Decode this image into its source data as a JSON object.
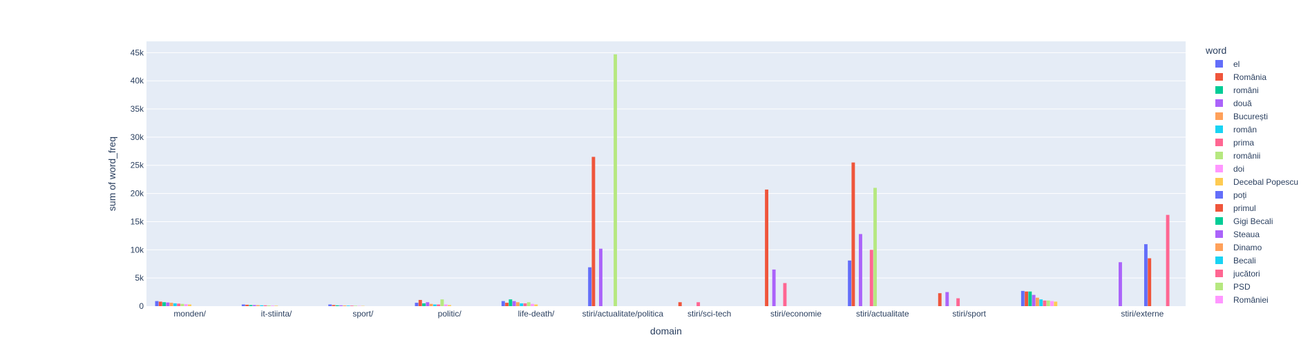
{
  "chart_data": {
    "type": "bar",
    "barmode": "group",
    "xlabel": "domain",
    "ylabel": "sum of word_freq",
    "ylim": [
      0,
      47000
    ],
    "yticks": [
      0,
      5000,
      10000,
      15000,
      20000,
      25000,
      30000,
      35000,
      40000,
      45000
    ],
    "yticklabels": [
      "0",
      "5k",
      "10k",
      "15k",
      "20k",
      "25k",
      "30k",
      "35k",
      "40k",
      "45k"
    ],
    "grid": true,
    "legend_title": "word",
    "legend_position": "right",
    "categories": [
      "monden/",
      "it-stiinta/",
      "sport/",
      "politic/",
      "life-death/",
      "stiri/actualitate/politica",
      "stiri/sci-tech",
      "stiri/economie",
      "stiri/actualitate",
      "stiri/sport",
      "",
      "stiri/externe"
    ],
    "series": [
      {
        "name": "el",
        "color": "#636efa",
        "values": [
          900,
          300,
          300,
          600,
          900,
          6900,
          0,
          0,
          8100,
          0,
          2700,
          0
        ]
      },
      {
        "name": "România",
        "color": "#EF553B",
        "values": [
          800,
          250,
          200,
          1100,
          600,
          26500,
          700,
          20700,
          25500,
          2300,
          2600,
          0
        ]
      },
      {
        "name": "români",
        "color": "#00cc96",
        "values": [
          700,
          200,
          150,
          500,
          1200,
          0,
          0,
          0,
          0,
          0,
          2600,
          0
        ]
      },
      {
        "name": "două",
        "color": "#ab63fa",
        "values": [
          650,
          200,
          150,
          700,
          900,
          10200,
          0,
          6500,
          12800,
          2500,
          2000,
          7800
        ]
      },
      {
        "name": "București",
        "color": "#FFA15A",
        "values": [
          600,
          180,
          120,
          400,
          700,
          0,
          0,
          0,
          0,
          0,
          1500,
          0
        ]
      },
      {
        "name": "român",
        "color": "#19d3f3",
        "values": [
          500,
          150,
          100,
          300,
          500,
          0,
          0,
          0,
          0,
          0,
          1200,
          0
        ]
      },
      {
        "name": "prima",
        "color": "#FF6692",
        "values": [
          450,
          150,
          100,
          300,
          500,
          0,
          700,
          4100,
          10000,
          1400,
          1000,
          0
        ]
      },
      {
        "name": "românii",
        "color": "#B6E880",
        "values": [
          400,
          120,
          80,
          1200,
          700,
          44700,
          0,
          0,
          21000,
          0,
          1000,
          0
        ]
      },
      {
        "name": "doi",
        "color": "#FF97FF",
        "values": [
          350,
          100,
          60,
          300,
          400,
          0,
          0,
          0,
          0,
          0,
          900,
          0
        ]
      },
      {
        "name": "Decebal Popescu",
        "color": "#FECB52",
        "values": [
          300,
          80,
          50,
          200,
          300,
          0,
          0,
          0,
          0,
          0,
          800,
          0
        ]
      },
      {
        "name": "poți",
        "color": "#636efa",
        "values": [
          0,
          0,
          0,
          0,
          0,
          0,
          0,
          0,
          0,
          0,
          0,
          11000
        ]
      },
      {
        "name": "primul",
        "color": "#EF553B",
        "values": [
          0,
          0,
          0,
          0,
          0,
          0,
          0,
          0,
          0,
          0,
          0,
          8500
        ]
      },
      {
        "name": "Gigi Becali",
        "color": "#00cc96",
        "values": [
          0,
          0,
          0,
          0,
          0,
          0,
          0,
          0,
          0,
          0,
          0,
          0
        ]
      },
      {
        "name": "Steaua",
        "color": "#ab63fa",
        "values": [
          0,
          0,
          0,
          0,
          0,
          0,
          0,
          0,
          0,
          0,
          0,
          0
        ]
      },
      {
        "name": "Dinamo",
        "color": "#FFA15A",
        "values": [
          0,
          0,
          0,
          0,
          0,
          0,
          0,
          0,
          0,
          0,
          0,
          0
        ]
      },
      {
        "name": "Becali",
        "color": "#19d3f3",
        "values": [
          0,
          0,
          0,
          0,
          0,
          0,
          0,
          0,
          0,
          0,
          0,
          0
        ]
      },
      {
        "name": "jucători",
        "color": "#FF6692",
        "values": [
          0,
          0,
          0,
          0,
          0,
          0,
          0,
          0,
          0,
          0,
          0,
          16200
        ]
      },
      {
        "name": "PSD",
        "color": "#B6E880",
        "values": [
          0,
          0,
          0,
          0,
          0,
          0,
          0,
          0,
          0,
          0,
          0,
          0
        ]
      },
      {
        "name": "României",
        "color": "#FF97FF",
        "values": [
          0,
          0,
          0,
          0,
          0,
          0,
          0,
          0,
          0,
          0,
          0,
          0
        ]
      }
    ]
  }
}
